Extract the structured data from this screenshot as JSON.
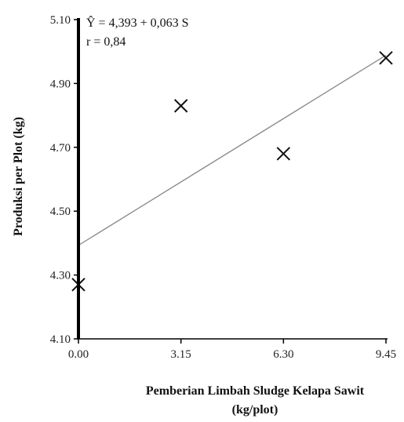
{
  "chart_data": {
    "type": "scatter",
    "title": "",
    "xlabel_line1": "Pemberian  Limbah Sludge Kelapa Sawit",
    "xlabel_line2": "(kg/plot)",
    "ylabel": "Produksi per Plot (kg)",
    "x_ticks": [
      "0.00",
      "3.15",
      "6.30",
      "9.45"
    ],
    "y_ticks": [
      "4.10",
      "4.30",
      "4.50",
      "4.70",
      "4.90",
      "5.10"
    ],
    "xlim": [
      0,
      9.45
    ],
    "ylim": [
      4.1,
      5.1
    ],
    "points": [
      {
        "x": 0.0,
        "y": 4.27
      },
      {
        "x": 3.15,
        "y": 4.83
      },
      {
        "x": 6.3,
        "y": 4.68
      },
      {
        "x": 9.45,
        "y": 4.98
      }
    ],
    "trendline": {
      "intercept": 4.393,
      "slope": 0.063
    },
    "equation": "Ŷ = 4,393 + 0,063 S",
    "r_text": "r = 0,84",
    "grid": false,
    "marker": "x",
    "colors": {
      "marker": "#111111",
      "trendline": "#888888",
      "axis": "#000000"
    }
  }
}
